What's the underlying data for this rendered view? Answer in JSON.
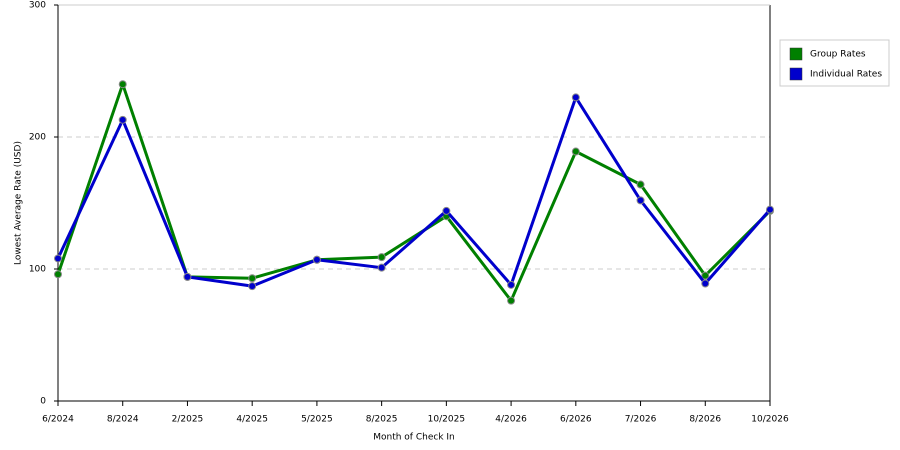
{
  "chart_data": {
    "type": "line",
    "x_label": "Month of Check In",
    "y_label": "Lowest Average Rate (USD)",
    "categories": [
      "6/2024",
      "8/2024",
      "2/2025",
      "4/2025",
      "5/2025",
      "8/2025",
      "10/2025",
      "4/2026",
      "6/2026",
      "7/2026",
      "8/2026",
      "10/2026"
    ],
    "series": [
      {
        "name": "Group Rates",
        "color": "#008000",
        "values": [
          96,
          240,
          94,
          93,
          107,
          109,
          140,
          76,
          189,
          164,
          95,
          144
        ]
      },
      {
        "name": "Individual Rates",
        "color": "#0000cc",
        "values": [
          108,
          213,
          94,
          87,
          107,
          101,
          144,
          88,
          230,
          152,
          89,
          145
        ]
      }
    ],
    "ylim": [
      0,
      300
    ],
    "yticks": [
      0,
      100,
      200,
      300
    ],
    "grid": true,
    "legend": "right"
  }
}
